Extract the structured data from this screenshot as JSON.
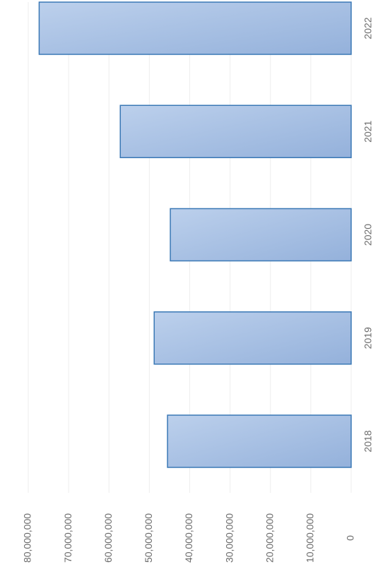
{
  "chart_data": {
    "type": "bar",
    "categories": [
      "2018",
      "2019",
      "2020",
      "2021",
      "2022"
    ],
    "values": [
      45500000,
      48800000,
      44800000,
      57200000,
      77300000
    ],
    "color": "#a9c1e3",
    "edge_color": "#3a78b5",
    "ylim": [
      0,
      80000000
    ],
    "yticks": [
      {
        "value": 0,
        "label": "0"
      },
      {
        "value": 10000000,
        "label": "10,000,000"
      },
      {
        "value": 20000000,
        "label": "20,000,000"
      },
      {
        "value": 30000000,
        "label": "30,000,000"
      },
      {
        "value": 40000000,
        "label": "40,000,000"
      },
      {
        "value": 50000000,
        "label": "50,000,000"
      },
      {
        "value": 60000000,
        "label": "60,000,000"
      },
      {
        "value": 70000000,
        "label": "70,000,000"
      },
      {
        "value": 80000000,
        "label": "80,000,000"
      }
    ],
    "grid": true
  }
}
